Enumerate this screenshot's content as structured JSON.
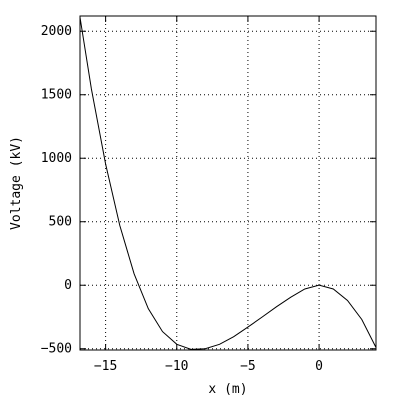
{
  "chart_data": {
    "type": "line",
    "title": "",
    "xlabel": "x (m)",
    "ylabel": "Voltage (kV)",
    "xlim": [
      -16.8,
      4
    ],
    "ylim": [
      -510,
      2120
    ],
    "x_ticks": [
      -15,
      -10,
      -5,
      0
    ],
    "y_ticks": [
      -500,
      0,
      500,
      1000,
      1500,
      2000
    ],
    "x_tick_labels": [
      "−15",
      "−10",
      "−5",
      "0"
    ],
    "y_tick_labels": [
      "−500",
      "0",
      "500",
      "1000",
      "1500",
      "2000"
    ],
    "grid": true,
    "series": [
      {
        "color": "#000000",
        "x": [
          -16.8,
          -16.0,
          -15.0,
          -14.0,
          -13.0,
          -12.0,
          -11.0,
          -10.0,
          -9.0,
          -8.0,
          -7.0,
          -6.0,
          -5.0,
          -4.0,
          -3.0,
          -2.0,
          -1.0,
          0.0,
          1.0,
          2.0,
          3.0,
          4.0
        ],
        "y": [
          2110,
          1545,
          955,
          470,
          90,
          -185,
          -365,
          -465,
          -505,
          -500,
          -465,
          -405,
          -330,
          -250,
          -170,
          -95,
          -30,
          0,
          -30,
          -120,
          -270,
          -490
        ]
      }
    ]
  }
}
